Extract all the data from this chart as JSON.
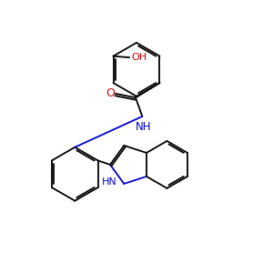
{
  "bg_color": "#ffffff",
  "bond_color": "#000000",
  "N_color": "#0000cc",
  "O_color": "#cc0000",
  "lw": 1.3,
  "dbo": 0.07,
  "fig_size": [
    3.0,
    3.0
  ],
  "dpi": 100,
  "xlim": [
    0,
    10
  ],
  "ylim": [
    0,
    10
  ]
}
